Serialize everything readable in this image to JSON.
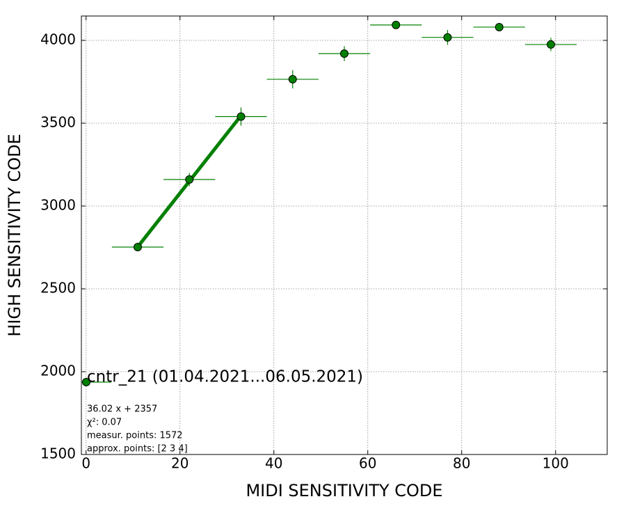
{
  "chart_data": {
    "type": "errorbar",
    "xlabel": "MIDI SENSITIVITY CODE",
    "ylabel": "HIGH SENSITIVITY CODE",
    "xlim": [
      -1,
      111
    ],
    "ylim": [
      1500,
      4147
    ],
    "xticks": [
      0,
      20,
      40,
      60,
      80,
      100
    ],
    "yticks": [
      1500,
      2000,
      2500,
      3000,
      3500,
      4000
    ],
    "grid": true,
    "legend": "lower left",
    "series": [
      {
        "name": "cntr_21 (01.04.2021...06.05.2021)",
        "color": "#008000",
        "x": [
          11,
          22,
          33,
          44,
          55,
          66,
          77,
          88,
          99
        ],
        "values": [
          2752,
          3160,
          3540,
          3765,
          3920,
          4093,
          4018,
          4080,
          3975
        ],
        "xerr": [
          5.5,
          5.5,
          5.5,
          5.5,
          5.5,
          5.5,
          5.5,
          5.5,
          5.5
        ],
        "yerr": [
          10,
          40,
          55,
          55,
          45,
          10,
          45,
          15,
          40
        ]
      }
    ],
    "fit": {
      "color": "#008000",
      "x": [
        11,
        33
      ],
      "values": [
        2753.22,
        3545.66
      ]
    },
    "annotations": [
      "36.02 x + 2357",
      "χ²: 0.07",
      "measur. points: 1572",
      "approx. points: [2 3 4]"
    ]
  }
}
